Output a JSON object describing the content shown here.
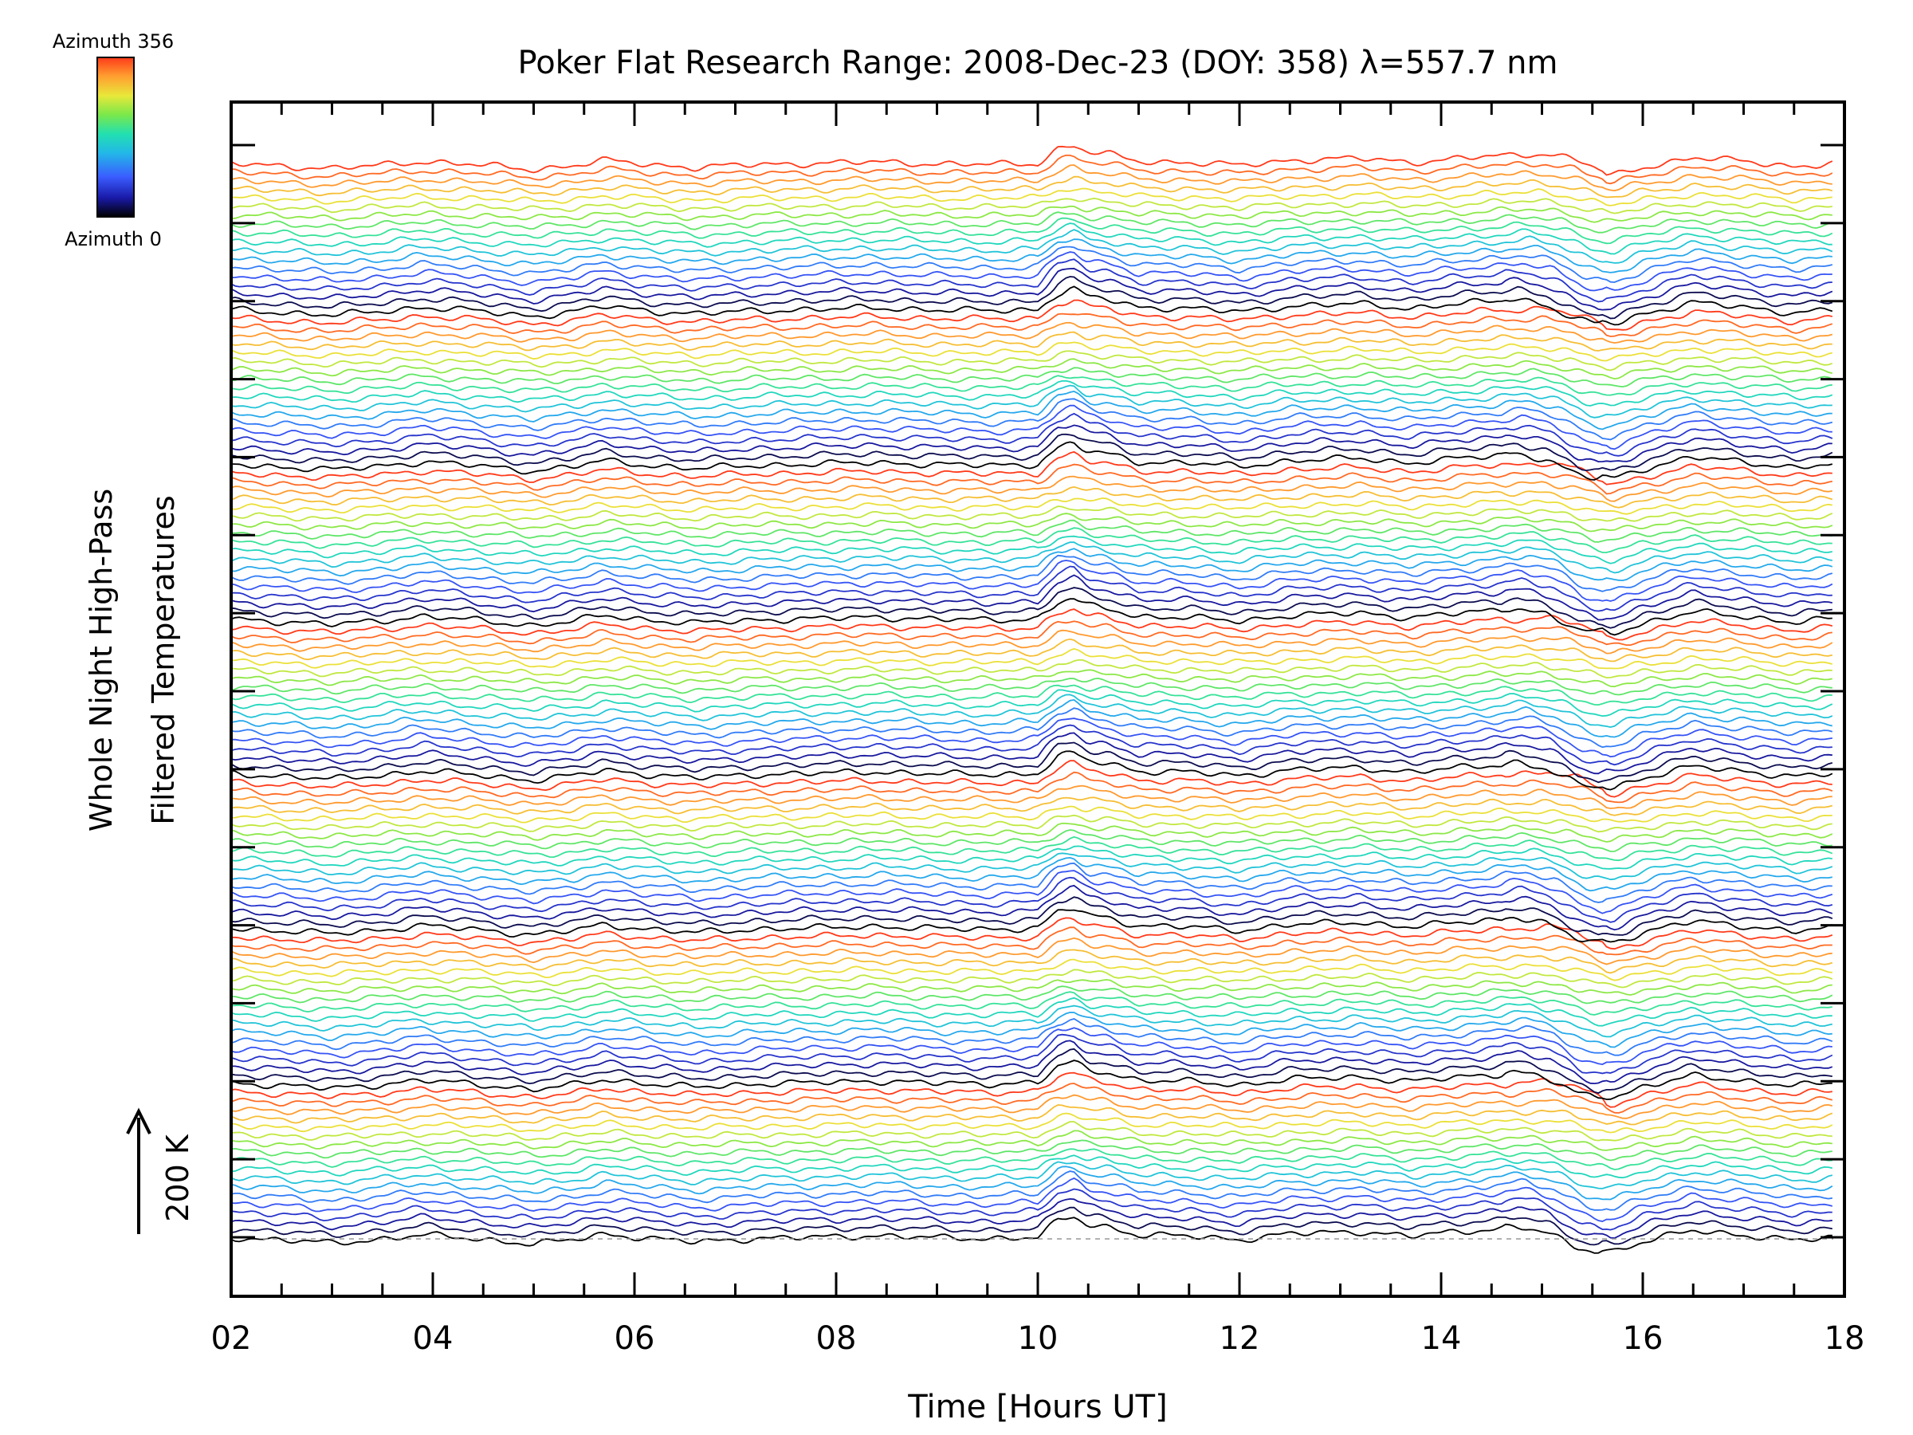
{
  "chart_data": {
    "type": "line",
    "title": "Poker Flat Research Range: 2008-Dec-23 (DOY: 358) λ=557.7 nm",
    "xlabel": "Time [Hours UT]",
    "ylabel_line1": "Whole Night High-Pass",
    "ylabel_line2": "Filtered Temperatures",
    "scale_label": "200 K",
    "xlim": [
      2,
      17.9
    ],
    "x_ticks": [
      "02",
      "04",
      "06",
      "08",
      "10",
      "12",
      "14",
      "16",
      "18"
    ],
    "x_tick_values": [
      2,
      4,
      6,
      8,
      10,
      12,
      14,
      16,
      18
    ],
    "colorbar": {
      "top_label": "Azimuth 356",
      "bottom_label": "Azimuth 0",
      "colors": [
        "#000000",
        "#1a1aa8",
        "#3a5cff",
        "#22b8e8",
        "#22e0b0",
        "#7ae84a",
        "#e8e83a",
        "#ffa030",
        "#ff3a1a"
      ]
    },
    "series_layout": {
      "groups": 7,
      "traces_per_group": 18,
      "trace_spacing_K": 7.2,
      "baseline_K": 0,
      "azimuth_range": [
        0,
        356
      ]
    },
    "common_signal": {
      "x": [
        2.0,
        2.5,
        3.0,
        3.5,
        3.9,
        4.4,
        5.0,
        5.4,
        5.7,
        6.2,
        6.6,
        7.2,
        7.8,
        8.4,
        9.0,
        9.5,
        10.0,
        10.2,
        10.35,
        10.5,
        10.7,
        11.0,
        11.5,
        12.0,
        12.5,
        13.2,
        13.7,
        14.2,
        14.9,
        15.2,
        15.5,
        15.7,
        16.0,
        16.5,
        17.0,
        17.5,
        17.9
      ],
      "y": [
        0,
        -5,
        -10,
        -3,
        4,
        -2,
        -12,
        -4,
        6,
        -3,
        -8,
        -2,
        0,
        3,
        -1,
        -2,
        0,
        28,
        36,
        22,
        18,
        4,
        2,
        -4,
        6,
        10,
        2,
        10,
        20,
        8,
        -18,
        -25,
        -8,
        12,
        4,
        -6,
        0
      ]
    }
  }
}
